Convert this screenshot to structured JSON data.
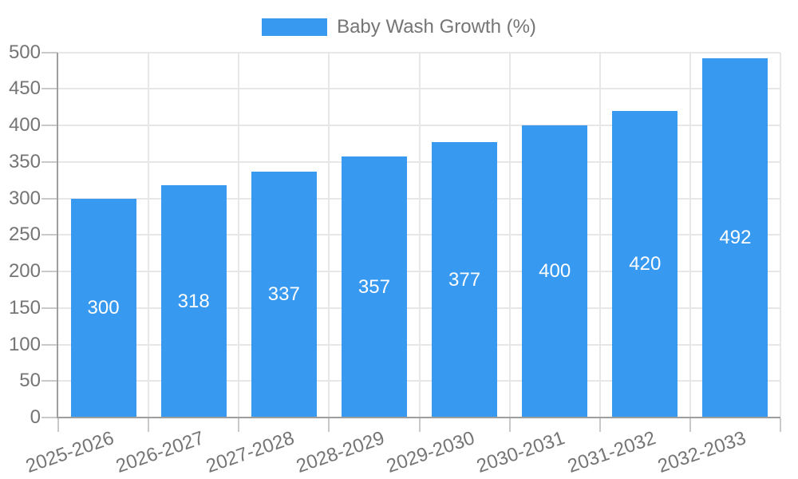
{
  "legend": {
    "label": "Baby Wash Growth (%)"
  },
  "chart_data": {
    "type": "bar",
    "title": "Baby Wash Growth (%)",
    "series_name": "Baby Wash Growth (%)",
    "categories": [
      "2025-2026",
      "2026-2027",
      "2027-2028",
      "2028-2029",
      "2029-2030",
      "2030-2031",
      "2031-2032",
      "2032-2033"
    ],
    "values": [
      300,
      318,
      337,
      357,
      377,
      400,
      420,
      492
    ],
    "value_labels": [
      "300",
      "318",
      "337",
      "357",
      "377",
      "400",
      "420",
      "492"
    ],
    "xlabel": "",
    "ylabel": "",
    "ylim": [
      0,
      500
    ],
    "ytick_step": 50,
    "yticks": [
      0,
      50,
      100,
      150,
      200,
      250,
      300,
      350,
      400,
      450,
      500
    ],
    "grid": true,
    "legend_position": "top",
    "x_tick_rotation_deg": -19,
    "bar_color": "#3899f0",
    "value_label_color": "#ffffff",
    "text_color": "#757575",
    "grid_color": "#e7e7e7",
    "axis_color": "#9e9e9e",
    "tick_color": "#c9c9c9",
    "background_color": "#ffffff"
  }
}
